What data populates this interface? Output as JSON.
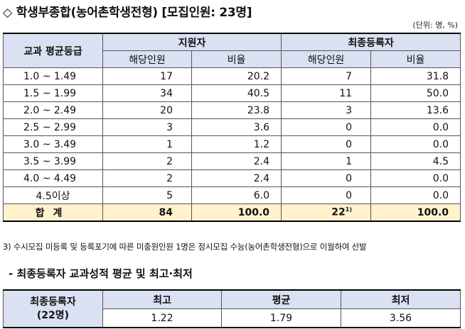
{
  "title": {
    "symbol": "◇",
    "text": "학생부종합(농어촌학생전형) [모집인원: 23명]"
  },
  "unit": "(단위: 명, %)",
  "main_table": {
    "header": {
      "grade": "교과 평균등급",
      "applicants": "지원자",
      "registered": "최종등록자",
      "count": "해당인원",
      "ratio": "비율"
    },
    "rows": [
      {
        "grade": "1.0 ~ 1.49",
        "app_count": "17",
        "app_ratio": "20.2",
        "reg_count": "7",
        "reg_ratio": "31.8"
      },
      {
        "grade": "1.5 ~ 1.99",
        "app_count": "34",
        "app_ratio": "40.5",
        "reg_count": "11",
        "reg_ratio": "50.0"
      },
      {
        "grade": "2.0 ~ 2.49",
        "app_count": "20",
        "app_ratio": "23.8",
        "reg_count": "3",
        "reg_ratio": "13.6"
      },
      {
        "grade": "2.5 ~ 2.99",
        "app_count": "3",
        "app_ratio": "3.6",
        "reg_count": "0",
        "reg_ratio": "0.0"
      },
      {
        "grade": "3.0 ~ 3.49",
        "app_count": "1",
        "app_ratio": "1.2",
        "reg_count": "0",
        "reg_ratio": "0.0"
      },
      {
        "grade": "3.5 ~ 3.99",
        "app_count": "2",
        "app_ratio": "2.4",
        "reg_count": "1",
        "reg_ratio": "4.5"
      },
      {
        "grade": "4.0 ~ 4.49",
        "app_count": "2",
        "app_ratio": "2.4",
        "reg_count": "0",
        "reg_ratio": "0.0"
      },
      {
        "grade": "4.5이상",
        "app_count": "5",
        "app_ratio": "6.0",
        "reg_count": "0",
        "reg_ratio": "0.0"
      }
    ],
    "total": {
      "label": "합계",
      "app_count": "84",
      "app_ratio": "100.0",
      "reg_count": "22",
      "reg_note": "1)",
      "reg_ratio": "100.0"
    }
  },
  "note": "3) 수시모집 미등록 및 등록포기에 따른 미충원인원 1명은 정시모집 수능(농어촌학생전형)으로 이월하여 선발",
  "section_title": "- 최종등록자 교과성적 평균 및 최고·최저",
  "summary_table": {
    "row_head_line1": "최종등록자",
    "row_head_line2": "(22명)",
    "headers": [
      "최고",
      "평균",
      "최저"
    ],
    "values": [
      "1.22",
      "1.79",
      "3.56"
    ]
  }
}
